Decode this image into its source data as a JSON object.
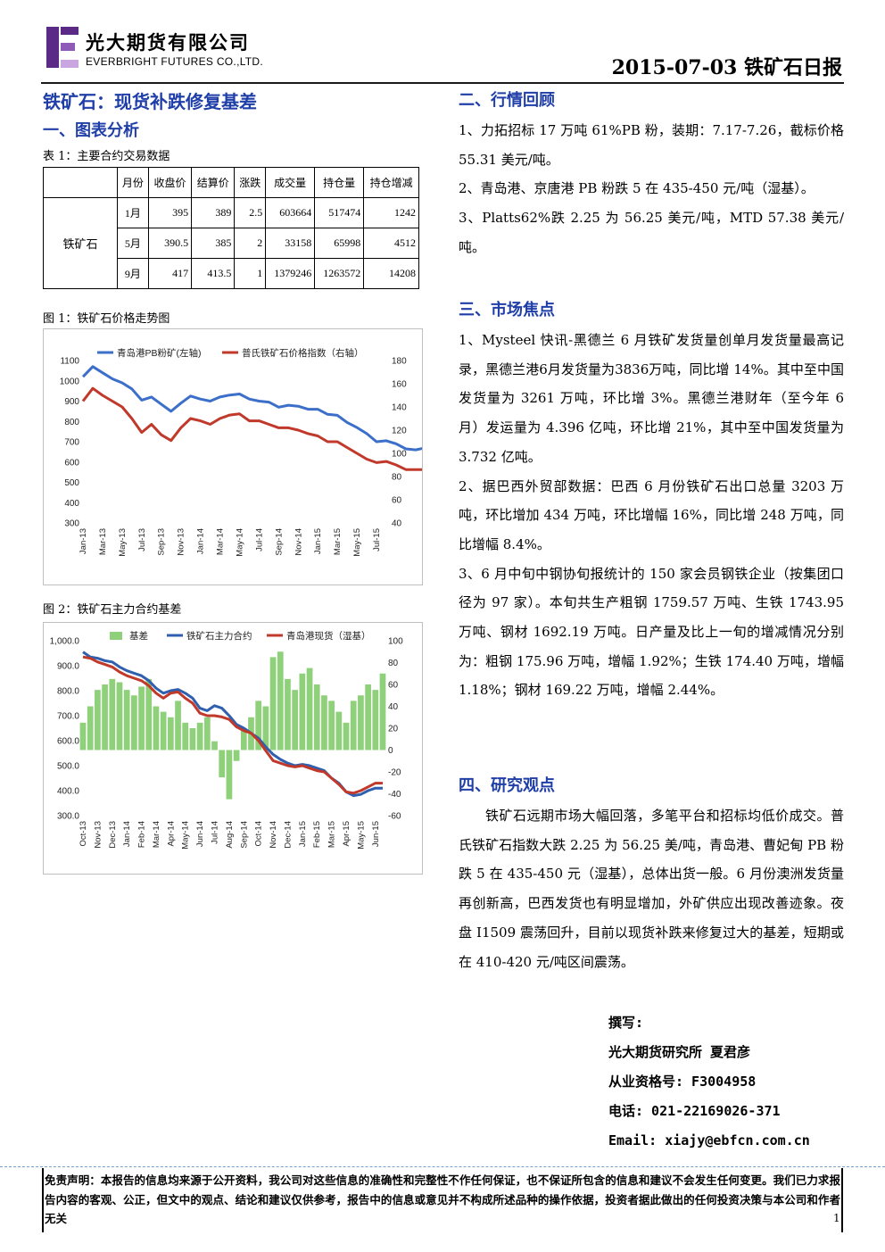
{
  "header": {
    "company_cn": "光大期货有限公司",
    "company_en": "EVERBRIGHT FUTURES CO.,LTD.",
    "report_title": "2015-07-03 铁矿石日报",
    "logo_colors": [
      "#5b2a86",
      "#8e5bb8",
      "#c9a6e0"
    ]
  },
  "left": {
    "headline": "铁矿石：现货补跌修复基差",
    "section1_title": "一、图表分析",
    "table_caption": "表 1：主要合约交易数据",
    "table": {
      "headers": [
        "月份",
        "收盘价",
        "结算价",
        "涨跌",
        "成交量",
        "持仓量",
        "持仓增减"
      ],
      "row_label": "铁矿石",
      "rows": [
        [
          "1月",
          "395",
          "389",
          "2.5",
          "603664",
          "517474",
          "1242"
        ],
        [
          "5月",
          "390.5",
          "385",
          "2",
          "33158",
          "65998",
          "4512"
        ],
        [
          "9月",
          "417",
          "413.5",
          "1",
          "1379246",
          "1263572",
          "14208"
        ]
      ]
    },
    "fig1_caption": "图 1：铁矿石价格走势图",
    "fig2_caption": "图 2：铁矿石主力合约基差"
  },
  "chart_data": [
    {
      "type": "line",
      "legend": [
        "青岛港PB粉矿(左轴)",
        "普氏铁矿石价格指数（右轴）"
      ],
      "x_ticks": [
        "Jan-13",
        "Mar-13",
        "May-13",
        "Jul-13",
        "Sep-13",
        "Nov-13",
        "Jan-14",
        "Mar-14",
        "May-14",
        "Jul-14",
        "Sep-14",
        "Nov-14",
        "Jan-15",
        "Mar-15",
        "May-15",
        "Jul-15"
      ],
      "y_left_ticks": [
        "1100",
        "1000",
        "900",
        "800",
        "700",
        "600",
        "500",
        "400",
        "300"
      ],
      "y_right_ticks": [
        "180",
        "160",
        "140",
        "120",
        "100",
        "80",
        "60",
        "40"
      ],
      "ylim_left": [
        300,
        1100
      ],
      "ylim_right": [
        40,
        180
      ],
      "series": [
        {
          "name": "青岛港PB粉矿(左轴)",
          "color": "#3b6fc9",
          "axis": "left",
          "x": [
            0,
            0.5,
            1,
            1.5,
            2,
            2.5,
            3,
            3.5,
            4,
            4.5,
            5,
            5.5,
            6,
            6.5,
            7,
            7.5,
            8,
            8.5,
            9,
            9.5,
            10,
            10.5,
            11,
            11.5,
            12,
            12.5,
            13,
            13.5,
            14,
            14.5,
            15,
            15.5,
            16,
            16.5,
            17,
            17.5,
            18,
            18.5,
            19,
            19.5,
            20,
            20.5,
            21,
            21.5,
            22,
            22.5,
            23,
            23.5,
            24,
            24.5,
            25,
            25.5,
            26,
            26.5,
            27,
            27.5,
            28,
            28.5,
            29,
            29.5,
            30
          ],
          "values": [
            1020,
            1070,
            1040,
            1010,
            990,
            960,
            905,
            920,
            885,
            850,
            890,
            925,
            910,
            900,
            920,
            930,
            935,
            910,
            900,
            895,
            870,
            880,
            875,
            860,
            860,
            835,
            830,
            795,
            770,
            740,
            700,
            705,
            690,
            665,
            660,
            670,
            630,
            655,
            630,
            600,
            590,
            580,
            585,
            560,
            520,
            505,
            500,
            495,
            485,
            475,
            445,
            420,
            400,
            415,
            420,
            425,
            440,
            445,
            460,
            440,
            445
          ]
        },
        {
          "name": "普氏铁矿石价格指数（右轴）",
          "color": "#c0392b",
          "axis": "right",
          "x": [
            0,
            0.5,
            1,
            1.5,
            2,
            2.5,
            3,
            3.5,
            4,
            4.5,
            5,
            5.5,
            6,
            6.5,
            7,
            7.5,
            8,
            8.5,
            9,
            9.5,
            10,
            10.5,
            11,
            11.5,
            12,
            12.5,
            13,
            13.5,
            14,
            14.5,
            15,
            15.5,
            16,
            16.5,
            17,
            17.5,
            18,
            18.5,
            19,
            19.5,
            20,
            20.5,
            21,
            21.5,
            22,
            22.5,
            23,
            23.5,
            24,
            24.5,
            25,
            25.5,
            26,
            26.5,
            27,
            27.5,
            28,
            28.5,
            29,
            29.5,
            30
          ],
          "values": [
            145,
            156,
            150,
            145,
            140,
            130,
            118,
            125,
            116,
            111,
            122,
            130,
            128,
            125,
            130,
            133,
            134,
            128,
            128,
            125,
            122,
            122,
            120,
            117,
            115,
            110,
            110,
            105,
            100,
            95,
            92,
            93,
            90,
            86,
            86,
            86,
            81,
            84,
            80,
            75,
            72,
            71,
            71,
            68,
            65,
            62,
            62,
            61,
            60,
            58,
            55,
            51,
            48,
            51,
            53,
            55,
            57,
            58,
            62,
            57,
            56
          ]
        }
      ]
    },
    {
      "type": "bar",
      "legend": [
        "基差",
        "铁矿石主力合约",
        "青岛港现货（湿基）"
      ],
      "x_ticks": [
        "Oct-13",
        "Nov-13",
        "Dec-13",
        "Jan-14",
        "Feb-14",
        "Mar-14",
        "Apr-14",
        "May-14",
        "Jun-14",
        "Jul-14",
        "Aug-14",
        "Sep-14",
        "Oct-14",
        "Nov-14",
        "Dec-14",
        "Jan-15",
        "Feb-15",
        "Mar-15",
        "Apr-15",
        "May-15",
        "Jun-15"
      ],
      "y_left_ticks": [
        "1,000.0",
        "900.0",
        "800.0",
        "700.0",
        "600.0",
        "500.0",
        "400.0",
        "300.0"
      ],
      "y_right_ticks": [
        "100",
        "80",
        "60",
        "40",
        "20",
        "0",
        "-20",
        "-40",
        "-60"
      ],
      "ylim_left": [
        300,
        1000
      ],
      "ylim_right": [
        -60,
        100
      ],
      "series": [
        {
          "name": "基差",
          "color": "#8fd07a",
          "axis": "right",
          "x": [
            0,
            0.5,
            1,
            1.5,
            2,
            2.5,
            3,
            3.5,
            4,
            4.5,
            5,
            5.5,
            6,
            6.5,
            7,
            7.5,
            8,
            8.5,
            9,
            9.5,
            10,
            10.5,
            11,
            11.5,
            12,
            12.5,
            13,
            13.5,
            14,
            14.5,
            15,
            15.5,
            16,
            16.5,
            17,
            17.5,
            18,
            18.5,
            19,
            19.5,
            20,
            20.5
          ],
          "values": [
            25,
            40,
            55,
            60,
            65,
            62,
            55,
            50,
            58,
            65,
            40,
            35,
            30,
            45,
            25,
            20,
            25,
            30,
            8,
            -25,
            -45,
            -10,
            20,
            30,
            45,
            40,
            85,
            90,
            65,
            55,
            70,
            75,
            60,
            50,
            45,
            35,
            25,
            45,
            50,
            60,
            55,
            70
          ]
        },
        {
          "name": "铁矿石主力合约",
          "color": "#2f5fae",
          "axis": "left",
          "x": [
            0,
            0.5,
            1,
            1.5,
            2,
            2.5,
            3,
            3.5,
            4,
            4.5,
            5,
            5.5,
            6,
            6.5,
            7,
            7.5,
            8,
            8.5,
            9,
            9.5,
            10,
            10.5,
            11,
            11.5,
            12,
            12.5,
            13,
            13.5,
            14,
            14.5,
            15,
            15.5,
            16,
            16.5,
            17,
            17.5,
            18,
            18.5,
            19,
            19.5,
            20,
            20.5
          ],
          "values": [
            955,
            935,
            930,
            920,
            915,
            895,
            880,
            870,
            860,
            840,
            810,
            790,
            800,
            805,
            790,
            770,
            730,
            720,
            740,
            730,
            700,
            665,
            650,
            630,
            610,
            575,
            545,
            525,
            510,
            500,
            505,
            500,
            490,
            480,
            450,
            430,
            395,
            380,
            385,
            400,
            410,
            410
          ]
        },
        {
          "name": "青岛港现货（湿基）",
          "color": "#c0392b",
          "axis": "left",
          "x": [
            0,
            0.5,
            1,
            1.5,
            2,
            2.5,
            3,
            3.5,
            4,
            4.5,
            5,
            5.5,
            6,
            6.5,
            7,
            7.5,
            8,
            8.5,
            9,
            9.5,
            10,
            10.5,
            11,
            11.5,
            12,
            12.5,
            13,
            13.5,
            14,
            14.5,
            15,
            15.5,
            16,
            16.5,
            17,
            17.5,
            18,
            18.5,
            19,
            19.5,
            20,
            20.5
          ],
          "values": [
            935,
            930,
            915,
            905,
            895,
            875,
            860,
            850,
            840,
            820,
            790,
            770,
            790,
            795,
            770,
            750,
            710,
            700,
            700,
            695,
            685,
            655,
            640,
            630,
            600,
            560,
            520,
            510,
            500,
            495,
            500,
            490,
            480,
            475,
            450,
            425,
            395,
            390,
            400,
            415,
            430,
            430
          ]
        }
      ]
    }
  ],
  "right": {
    "sec2_title": "二、行情回顾",
    "sec2_items": [
      "1、力拓招标 17 万吨 61%PB 粉，装期：7.17-7.26，截标价格 55.31 美元/吨。",
      "2、青岛港、京唐港 PB 粉跌 5 在 435-450 元/吨（湿基）。",
      "3、Platts62%跌 2.25 为 56.25 美元/吨，MTD 57.38 美元/吨。"
    ],
    "sec3_title": "三、市场焦点",
    "sec3_items": [
      "1、Mysteel 快讯-黑德兰 6 月铁矿发货量创单月发货量最高记录，黑德兰港6月发货量为3836万吨，同比增 14%。其中至中国发货量为 3261 万吨，环比增 3%。黑德兰港财年（至今年 6 月）发运量为 4.396 亿吨，环比增 21%，其中至中国发货量为 3.732 亿吨。",
      "2、据巴西外贸部数据：巴西 6 月份铁矿石出口总量 3203 万吨，环比增加 434 万吨，环比增幅 16%，同比增 248 万吨，同比增幅 8.4%。",
      "3、6 月中旬中钢协旬报统计的 150 家会员钢铁企业（按集团口径为 97 家）。本旬共生产粗钢 1759.57 万吨、生铁 1743.95 万吨、钢材 1692.19 万吨。日产量及比上一旬的增减情况分别为：粗钢 175.96 万吨，增幅 1.92%；生铁 174.40 万吨，增幅 1.18%；钢材 169.22 万吨，增幅 2.44%。"
    ],
    "sec4_title": "四、研究观点",
    "sec4_text": "铁矿石远期市场大幅回落，多笔平台和招标均低价成交。普氏铁矿石指数大跌 2.25 为 56.25 美/吨，青岛港、曹妃甸 PB 粉跌 5 在 435-450 元（湿基），总体出货一般。6 月份澳洲发货量再创新高，巴西发货也有明显增加，外矿供应出现改善迹象。夜盘 I1509 震荡回升，目前以现货补跌来修复过大的基差，短期或在 410-420 元/吨区间震荡。",
    "author_label": "撰写:",
    "author": "光大期货研究所 夏君彦",
    "license": "从业资格号: F3004958",
    "phone": "电话: 021-22169026-371",
    "email": "Email: xiajy@ebfcn.com.cn"
  },
  "footer": {
    "disclaimer": "免责声明：本报告的信息均来源于公开资料，我公司对这些信息的准确性和完整性不作任何保证，也不保证所包含的信息和建议不会发生任何变更。我们已力求报告内容的客观、公正，但文中的观点、结论和建议仅供参考，报告中的信息或意见并不构成所述品种的操作依据，投资者据此做出的任何投资决策与本公司和作者无关",
    "page_number": "1"
  }
}
